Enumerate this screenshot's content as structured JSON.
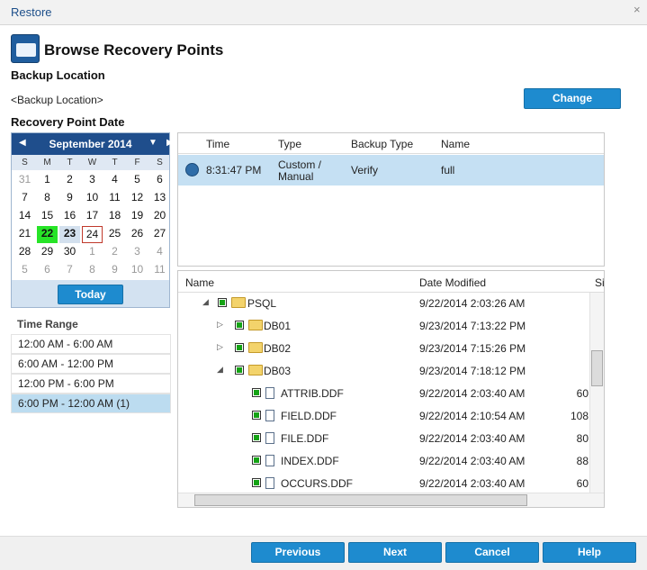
{
  "dialog": {
    "title": "Restore"
  },
  "header": {
    "title": "Browse Recovery Points"
  },
  "backup_location": {
    "label": "Backup Location",
    "value": "<Backup Location>",
    "button": "Change"
  },
  "recovery_point_date": {
    "label": "Recovery Point Date"
  },
  "calendar": {
    "month": "September 2014",
    "weekdays": [
      "S",
      "M",
      "T",
      "W",
      "T",
      "F",
      "S"
    ],
    "weeks": [
      [
        31,
        1,
        2,
        3,
        4,
        5,
        6
      ],
      [
        7,
        8,
        9,
        10,
        11,
        12,
        13
      ],
      [
        14,
        15,
        16,
        17,
        18,
        19,
        20
      ],
      [
        21,
        22,
        23,
        24,
        25,
        26,
        27
      ],
      [
        28,
        29,
        30,
        1,
        2,
        3,
        4
      ],
      [
        5,
        6,
        7,
        8,
        9,
        10,
        11
      ]
    ],
    "today_button": "Today"
  },
  "time_range": {
    "label": "Time Range",
    "items": [
      "12:00 AM - 6:00 AM",
      "6:00 AM - 12:00 PM",
      "12:00 PM - 6:00 PM",
      "6:00 PM - 12:00 AM   (1)"
    ]
  },
  "recovery_points": {
    "columns": [
      "Time",
      "Type",
      "Backup Type",
      "Name"
    ],
    "rows": [
      [
        "8:31:47 PM",
        "Custom / Manual",
        "Verify",
        "full"
      ]
    ]
  },
  "file_tree": {
    "columns": [
      "Name",
      "Date Modified",
      "Si"
    ],
    "rows": [
      {
        "name": "PSQL",
        "date": "9/22/2014 2:03:26 AM"
      },
      {
        "name": "DB01",
        "date": "9/23/2014 7:13:22 PM"
      },
      {
        "name": "DB02",
        "date": "9/23/2014 7:15:26 PM"
      },
      {
        "name": "DB03",
        "date": "9/23/2014 7:18:12 PM"
      },
      {
        "name": "ATTRIB.DDF",
        "date": "9/22/2014 2:03:40 AM",
        "size": "60"
      },
      {
        "name": "FIELD.DDF",
        "date": "9/22/2014 2:10:54 AM",
        "size": "108"
      },
      {
        "name": "FILE.DDF",
        "date": "9/22/2014 2:03:40 AM",
        "size": "80"
      },
      {
        "name": "INDEX.DDF",
        "date": "9/22/2014 2:03:40 AM",
        "size": "88"
      },
      {
        "name": "OCCURS.DDF",
        "date": "9/22/2014 2:03:40 AM",
        "size": "60"
      }
    ]
  },
  "footer": {
    "buttons": [
      "Previous",
      "Next",
      "Cancel",
      "Help"
    ]
  }
}
